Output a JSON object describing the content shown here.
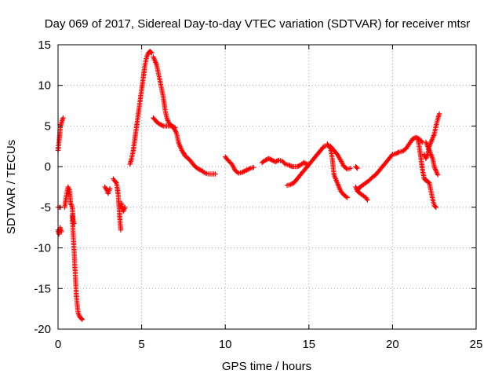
{
  "chart_data": {
    "type": "scatter",
    "title": "Day 069 of 2017, Sidereal Day-to-day VTEC variation (SDTVAR) for receiver mtsr",
    "xlabel": "GPS time / hours",
    "ylabel": "SDTVAR / TECUs",
    "xlim": [
      0,
      25
    ],
    "ylim": [
      -20,
      15
    ],
    "xticks": [
      0,
      5,
      10,
      15,
      20,
      25
    ],
    "yticks": [
      -20,
      -15,
      -10,
      -5,
      0,
      5,
      10,
      15
    ],
    "grid": true,
    "marker": "+",
    "series": [
      {
        "name": "SDTVAR",
        "color": "#ff0000",
        "segments": [
          [
            [
              0.0,
              2.0
            ],
            [
              0.08,
              3.5
            ],
            [
              0.15,
              5.0
            ],
            [
              0.22,
              5.5
            ],
            [
              0.3,
              6.0
            ]
          ],
          [
            [
              0.0,
              -5.0
            ],
            [
              0.08,
              -5.0
            ],
            [
              0.15,
              -5.0
            ]
          ],
          [
            [
              0.0,
              -7.8
            ],
            [
              0.05,
              -8.3
            ],
            [
              0.12,
              -7.5
            ],
            [
              0.2,
              -8.0
            ]
          ],
          [
            [
              0.4,
              -5.0
            ],
            [
              0.5,
              -3.5
            ],
            [
              0.6,
              -2.5
            ],
            [
              0.7,
              -3.0
            ],
            [
              0.75,
              -4.5
            ],
            [
              0.85,
              -5.0
            ],
            [
              0.9,
              -6.5
            ],
            [
              0.95,
              -7.0
            ]
          ],
          [
            [
              0.85,
              -6.0
            ],
            [
              0.9,
              -8.0
            ],
            [
              0.95,
              -10.0
            ],
            [
              1.0,
              -12.0
            ],
            [
              1.05,
              -14.0
            ],
            [
              1.1,
              -16.0
            ],
            [
              1.15,
              -17.0
            ],
            [
              1.2,
              -18.0
            ],
            [
              1.3,
              -18.5
            ],
            [
              1.45,
              -18.8
            ]
          ],
          [
            [
              2.8,
              -2.5
            ],
            [
              2.9,
              -2.8
            ],
            [
              3.0,
              -3.3
            ],
            [
              3.1,
              -2.7
            ]
          ],
          [
            [
              3.3,
              -1.5
            ],
            [
              3.4,
              -1.8
            ],
            [
              3.5,
              -2.0
            ],
            [
              3.6,
              -3.5
            ],
            [
              3.65,
              -5.0
            ],
            [
              3.7,
              -6.5
            ],
            [
              3.75,
              -7.8
            ]
          ],
          [
            [
              3.8,
              -4.5
            ],
            [
              3.9,
              -5.5
            ],
            [
              4.0,
              -5.0
            ]
          ],
          [
            [
              4.3,
              0.3
            ],
            [
              4.4,
              1.0
            ],
            [
              4.5,
              2.0
            ],
            [
              4.6,
              3.5
            ],
            [
              4.7,
              5.0
            ],
            [
              4.8,
              6.5
            ],
            [
              4.9,
              8.0
            ],
            [
              5.0,
              9.5
            ],
            [
              5.1,
              11.0
            ],
            [
              5.2,
              12.5
            ],
            [
              5.3,
              13.5
            ],
            [
              5.4,
              14.0
            ],
            [
              5.5,
              14.2
            ],
            [
              5.6,
              14.0
            ]
          ],
          [
            [
              5.7,
              13.5
            ],
            [
              5.8,
              13.0
            ],
            [
              5.9,
              12.5
            ],
            [
              6.0,
              11.5
            ],
            [
              6.1,
              10.5
            ],
            [
              6.2,
              9.5
            ],
            [
              6.3,
              8.5
            ],
            [
              6.4,
              7.0
            ],
            [
              6.5,
              6.0
            ],
            [
              6.6,
              5.5
            ],
            [
              6.7,
              5.2
            ],
            [
              6.8,
              5.0
            ],
            [
              6.9,
              4.8
            ],
            [
              7.0,
              4.5
            ],
            [
              7.1,
              4.0
            ],
            [
              7.2,
              3.0
            ],
            [
              7.3,
              2.5
            ],
            [
              7.4,
              2.0
            ],
            [
              7.5,
              1.7
            ],
            [
              7.6,
              1.3
            ],
            [
              7.8,
              1.0
            ],
            [
              8.0,
              0.5
            ],
            [
              8.2,
              0.0
            ],
            [
              8.4,
              -0.3
            ],
            [
              8.6,
              -0.5
            ],
            [
              8.8,
              -0.8
            ],
            [
              9.0,
              -0.9
            ],
            [
              9.2,
              -0.9
            ],
            [
              9.4,
              -0.9
            ]
          ],
          [
            [
              5.7,
              6.0
            ],
            [
              5.9,
              5.5
            ],
            [
              6.1,
              5.2
            ],
            [
              6.3,
              5.0
            ],
            [
              6.5,
              5.0
            ],
            [
              6.8,
              5.0
            ],
            [
              7.0,
              4.8
            ]
          ],
          [
            [
              10.0,
              1.2
            ],
            [
              10.2,
              0.7
            ],
            [
              10.4,
              0.3
            ],
            [
              10.6,
              -0.5
            ],
            [
              10.8,
              -0.8
            ],
            [
              11.0,
              -0.7
            ],
            [
              11.2,
              -0.5
            ],
            [
              11.5,
              -0.2
            ],
            [
              11.7,
              -0.1
            ]
          ],
          [
            [
              12.2,
              0.5
            ],
            [
              12.4,
              0.8
            ],
            [
              12.6,
              1.0
            ],
            [
              12.8,
              0.8
            ],
            [
              13.0,
              0.6
            ],
            [
              13.2,
              0.8
            ],
            [
              13.4,
              0.7
            ],
            [
              13.6,
              0.3
            ],
            [
              13.8,
              0.2
            ],
            [
              14.0,
              0.0
            ],
            [
              14.3,
              0.0
            ],
            [
              14.5,
              0.2
            ],
            [
              14.7,
              0.5
            ],
            [
              14.9,
              0.3
            ]
          ],
          [
            [
              13.7,
              -2.3
            ],
            [
              13.9,
              -2.2
            ],
            [
              14.1,
              -2.0
            ],
            [
              14.3,
              -1.5
            ],
            [
              14.5,
              -1.0
            ],
            [
              14.7,
              -0.5
            ],
            [
              14.9,
              0.0
            ],
            [
              15.1,
              0.5
            ],
            [
              15.3,
              1.0
            ],
            [
              15.5,
              1.5
            ],
            [
              15.7,
              2.0
            ],
            [
              15.9,
              2.5
            ],
            [
              16.1,
              2.6
            ],
            [
              16.3,
              2.5
            ],
            [
              16.5,
              2.0
            ],
            [
              16.7,
              1.5
            ],
            [
              16.9,
              0.8
            ],
            [
              17.1,
              0.0
            ],
            [
              17.3,
              -0.3
            ],
            [
              17.5,
              -0.2
            ]
          ],
          [
            [
              16.1,
              2.8
            ],
            [
              16.3,
              2.2
            ],
            [
              16.4,
              1.0
            ],
            [
              16.5,
              -1.0
            ],
            [
              16.7,
              -2.0
            ],
            [
              16.9,
              -3.0
            ],
            [
              17.1,
              -3.5
            ],
            [
              17.3,
              -3.8
            ]
          ],
          [
            [
              17.8,
              0.0
            ],
            [
              17.9,
              -0.2
            ]
          ],
          [
            [
              17.9,
              -3.0
            ],
            [
              18.0,
              -2.6
            ],
            [
              18.2,
              -2.3
            ],
            [
              18.4,
              -2.0
            ],
            [
              18.6,
              -1.7
            ],
            [
              18.8,
              -1.3
            ],
            [
              19.0,
              -1.0
            ],
            [
              19.2,
              -0.5
            ],
            [
              19.4,
              0.0
            ],
            [
              19.6,
              0.5
            ],
            [
              19.8,
              1.0
            ],
            [
              20.0,
              1.5
            ],
            [
              20.2,
              1.6
            ],
            [
              20.4,
              1.8
            ],
            [
              20.6,
              1.9
            ],
            [
              20.8,
              2.2
            ],
            [
              21.0,
              2.8
            ],
            [
              21.2,
              3.4
            ],
            [
              21.4,
              3.6
            ],
            [
              21.6,
              3.4
            ],
            [
              21.8,
              3.0
            ]
          ],
          [
            [
              17.8,
              -2.5
            ],
            [
              17.9,
              -3.0
            ],
            [
              18.0,
              -3.2
            ],
            [
              18.2,
              -3.5
            ],
            [
              18.4,
              -3.8
            ],
            [
              18.5,
              -4.1
            ]
          ],
          [
            [
              21.5,
              3.5
            ],
            [
              21.6,
              2.5
            ],
            [
              21.7,
              1.0
            ],
            [
              21.8,
              -0.5
            ],
            [
              21.9,
              -1.5
            ],
            [
              22.0,
              -1.7
            ],
            [
              22.1,
              -1.8
            ],
            [
              22.2,
              -2.0
            ],
            [
              22.3,
              -3.0
            ],
            [
              22.4,
              -4.0
            ],
            [
              22.5,
              -4.8
            ],
            [
              22.6,
              -5.0
            ]
          ],
          [
            [
              22.0,
              3.0
            ],
            [
              22.1,
              2.5
            ],
            [
              22.2,
              2.0
            ],
            [
              22.3,
              1.5
            ],
            [
              22.4,
              1.0
            ],
            [
              22.5,
              0.0
            ],
            [
              22.6,
              -0.5
            ],
            [
              22.7,
              -1.0
            ]
          ],
          [
            [
              21.9,
              1.5
            ],
            [
              22.0,
              1.0
            ],
            [
              22.1,
              1.5
            ],
            [
              22.2,
              2.5
            ],
            [
              22.3,
              3.0
            ],
            [
              22.4,
              3.5
            ],
            [
              22.5,
              4.0
            ],
            [
              22.6,
              5.0
            ],
            [
              22.7,
              5.8
            ],
            [
              22.8,
              6.5
            ]
          ]
        ]
      }
    ]
  }
}
